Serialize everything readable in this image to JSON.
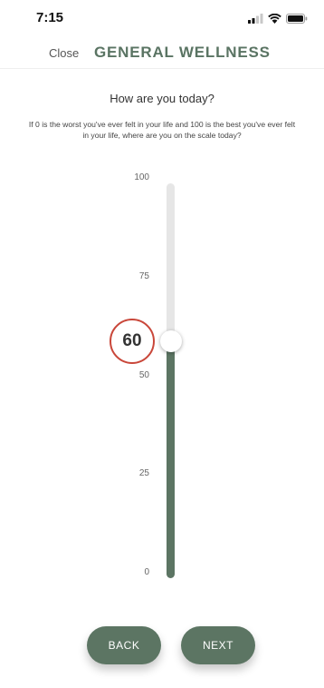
{
  "status_bar": {
    "time": "7:15"
  },
  "nav": {
    "close_label": "Close",
    "title": "GENERAL WELLNESS"
  },
  "question": "How are you today?",
  "instructions": "If 0 is the worst you've ever felt in your life and 100 is the best you've ever felt in your life, where are you on the scale today?",
  "slider": {
    "min": 0,
    "max": 100,
    "value": 60,
    "value_label": "60",
    "ticks": [
      "100",
      "75",
      "50",
      "25",
      "0"
    ],
    "fill_color": "#5c7563",
    "track_color": "#e6e6e6",
    "badge_border_color": "#c9473a"
  },
  "buttons": {
    "back_label": "BACK",
    "next_label": "NEXT"
  },
  "icons": {
    "signal": "cellular-signal-icon",
    "wifi": "wifi-icon",
    "battery": "battery-icon"
  }
}
